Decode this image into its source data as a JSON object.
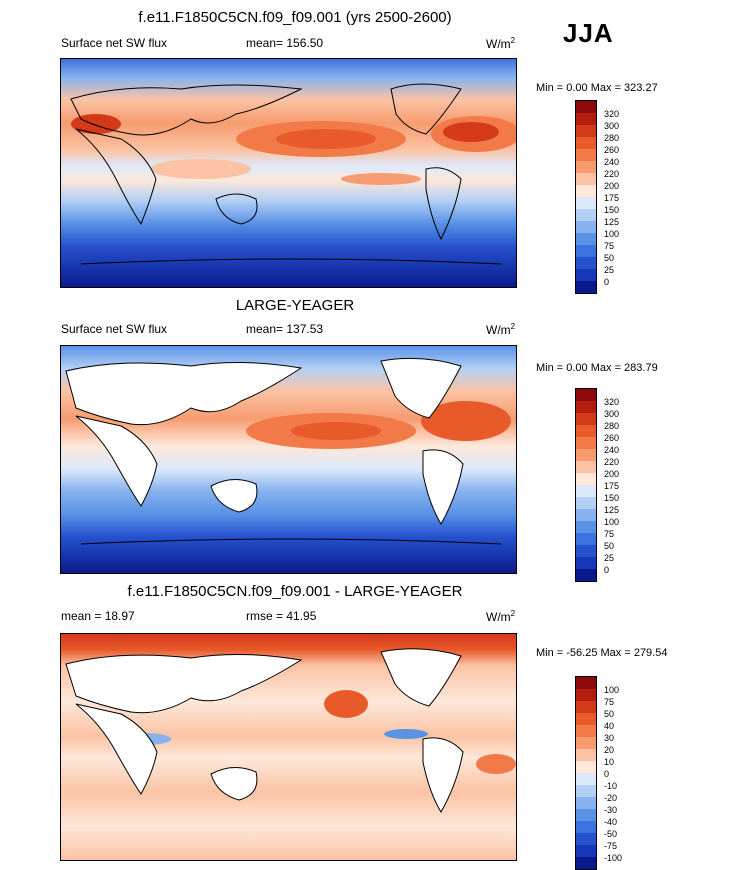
{
  "season": "JJA",
  "panels": [
    {
      "title": "f.e11.F1850C5CN.f09_f09.001 (yrs 2500-2600)",
      "left_label": "Surface net SW flux",
      "stat_label": "mean= 156.50",
      "units_base": "W/m",
      "units_exp": "2",
      "minmax": "Min =   0.00 Max = 323.27",
      "legend_levels": [
        "320",
        "300",
        "280",
        "260",
        "240",
        "220",
        "200",
        "175",
        "150",
        "125",
        "100",
        "75",
        "50",
        "25",
        "0"
      ],
      "legend_colors": [
        "#8e0a0a",
        "#b41e10",
        "#d43a1a",
        "#e85a2a",
        "#f27a48",
        "#f79c70",
        "#fbc3a4",
        "#fde8da",
        "#dde9fa",
        "#b4d0f5",
        "#86b2ee",
        "#5a92e6",
        "#3c72dd",
        "#2652cf",
        "#1836b8",
        "#0a1a8c"
      ]
    },
    {
      "title": "LARGE-YEAGER",
      "left_label": "Surface net SW flux",
      "stat_label": "mean= 137.53",
      "units_base": "W/m",
      "units_exp": "2",
      "minmax": "Min =   0.00 Max = 283.79",
      "legend_levels": [
        "320",
        "300",
        "280",
        "260",
        "240",
        "220",
        "200",
        "175",
        "150",
        "125",
        "100",
        "75",
        "50",
        "25",
        "0"
      ],
      "legend_colors": [
        "#8e0a0a",
        "#b41e10",
        "#d43a1a",
        "#e85a2a",
        "#f27a48",
        "#f79c70",
        "#fbc3a4",
        "#fde8da",
        "#dde9fa",
        "#b4d0f5",
        "#86b2ee",
        "#5a92e6",
        "#3c72dd",
        "#2652cf",
        "#1836b8",
        "#0a1a8c"
      ]
    },
    {
      "title": "f.e11.F1850C5CN.f09_f09.001 - LARGE-YEAGER",
      "left_label": "mean =  18.97",
      "stat_label": "rmse =  41.95",
      "units_base": "W/m",
      "units_exp": "2",
      "minmax": "Min = -56.25 Max = 279.54",
      "legend_levels": [
        "100",
        "75",
        "50",
        "40",
        "30",
        "20",
        "10",
        "0",
        "-10",
        "-20",
        "-30",
        "-40",
        "-50",
        "-75",
        "-100"
      ],
      "legend_colors": [
        "#8e0a0a",
        "#b41e10",
        "#d43a1a",
        "#e85a2a",
        "#f27a48",
        "#f79c70",
        "#fbc3a4",
        "#fde8da",
        "#dde9fa",
        "#b4d0f5",
        "#86b2ee",
        "#5a92e6",
        "#3c72dd",
        "#2652cf",
        "#1836b8",
        "#0a1a8c"
      ]
    }
  ]
}
